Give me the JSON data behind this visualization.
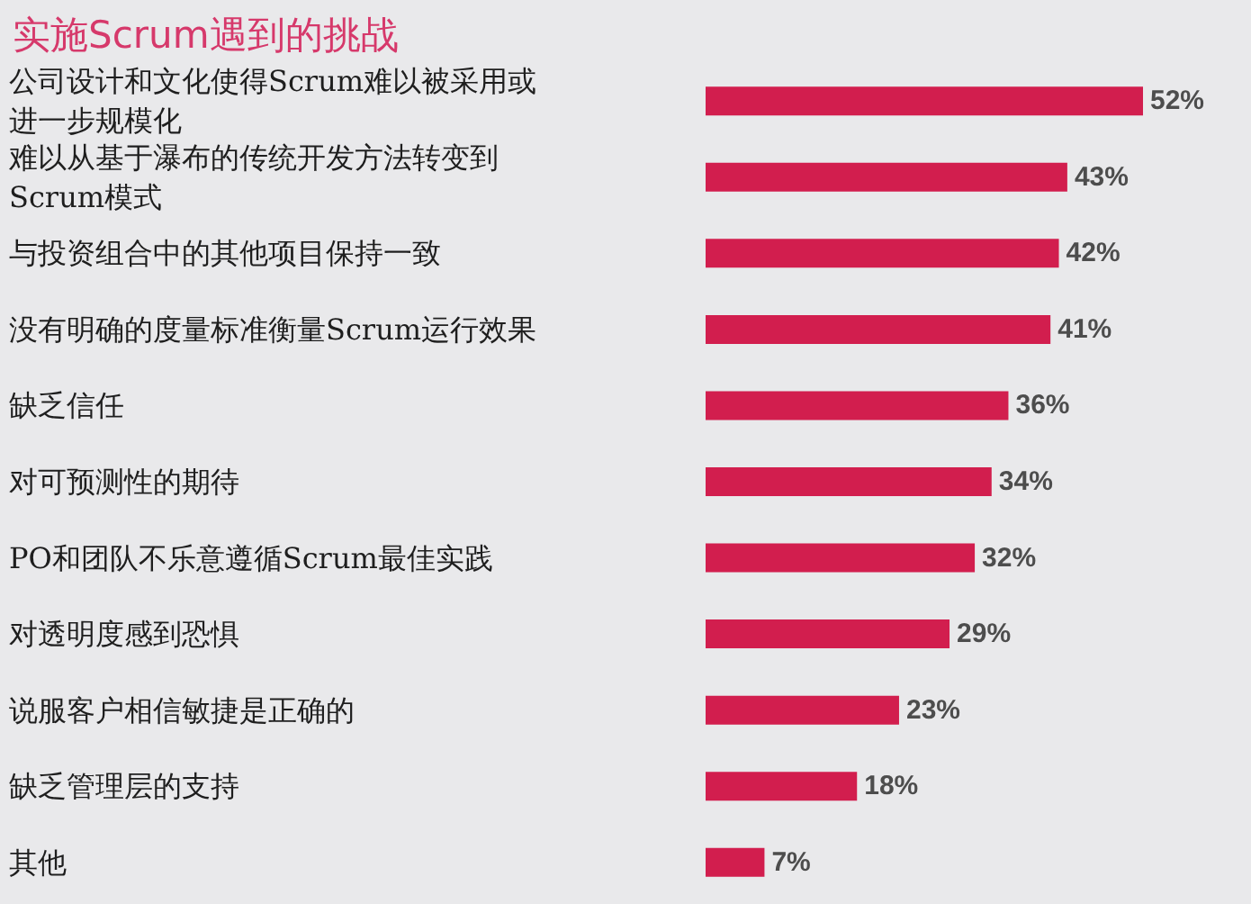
{
  "chart_data": {
    "type": "bar",
    "orientation": "horizontal",
    "title": "实施Scrum遇到的挑战",
    "categories": [
      "公司设计和文化使得Scrum难以被采用或进一步规模化",
      "难以从基于瀑布的传统开发方法转变到Scrum模式",
      "与投资组合中的其他项目保持一致",
      "没有明确的度量标准衡量Scrum运行效果",
      "缺乏信任",
      "对可预测性的期待",
      "PO和团队不乐意遵循Scrum最佳实践",
      "对透明度感到恐惧",
      "说服客户相信敏捷是正确的",
      "缺乏管理层的支持",
      "其他"
    ],
    "values": [
      52,
      43,
      42,
      41,
      36,
      34,
      32,
      29,
      23,
      18,
      7
    ],
    "value_labels": [
      "52%",
      "43%",
      "42%",
      "41%",
      "36%",
      "34%",
      "32%",
      "29%",
      "23%",
      "18%",
      "7%"
    ],
    "color": "#d21e4e",
    "tick_labels": "y"
  }
}
